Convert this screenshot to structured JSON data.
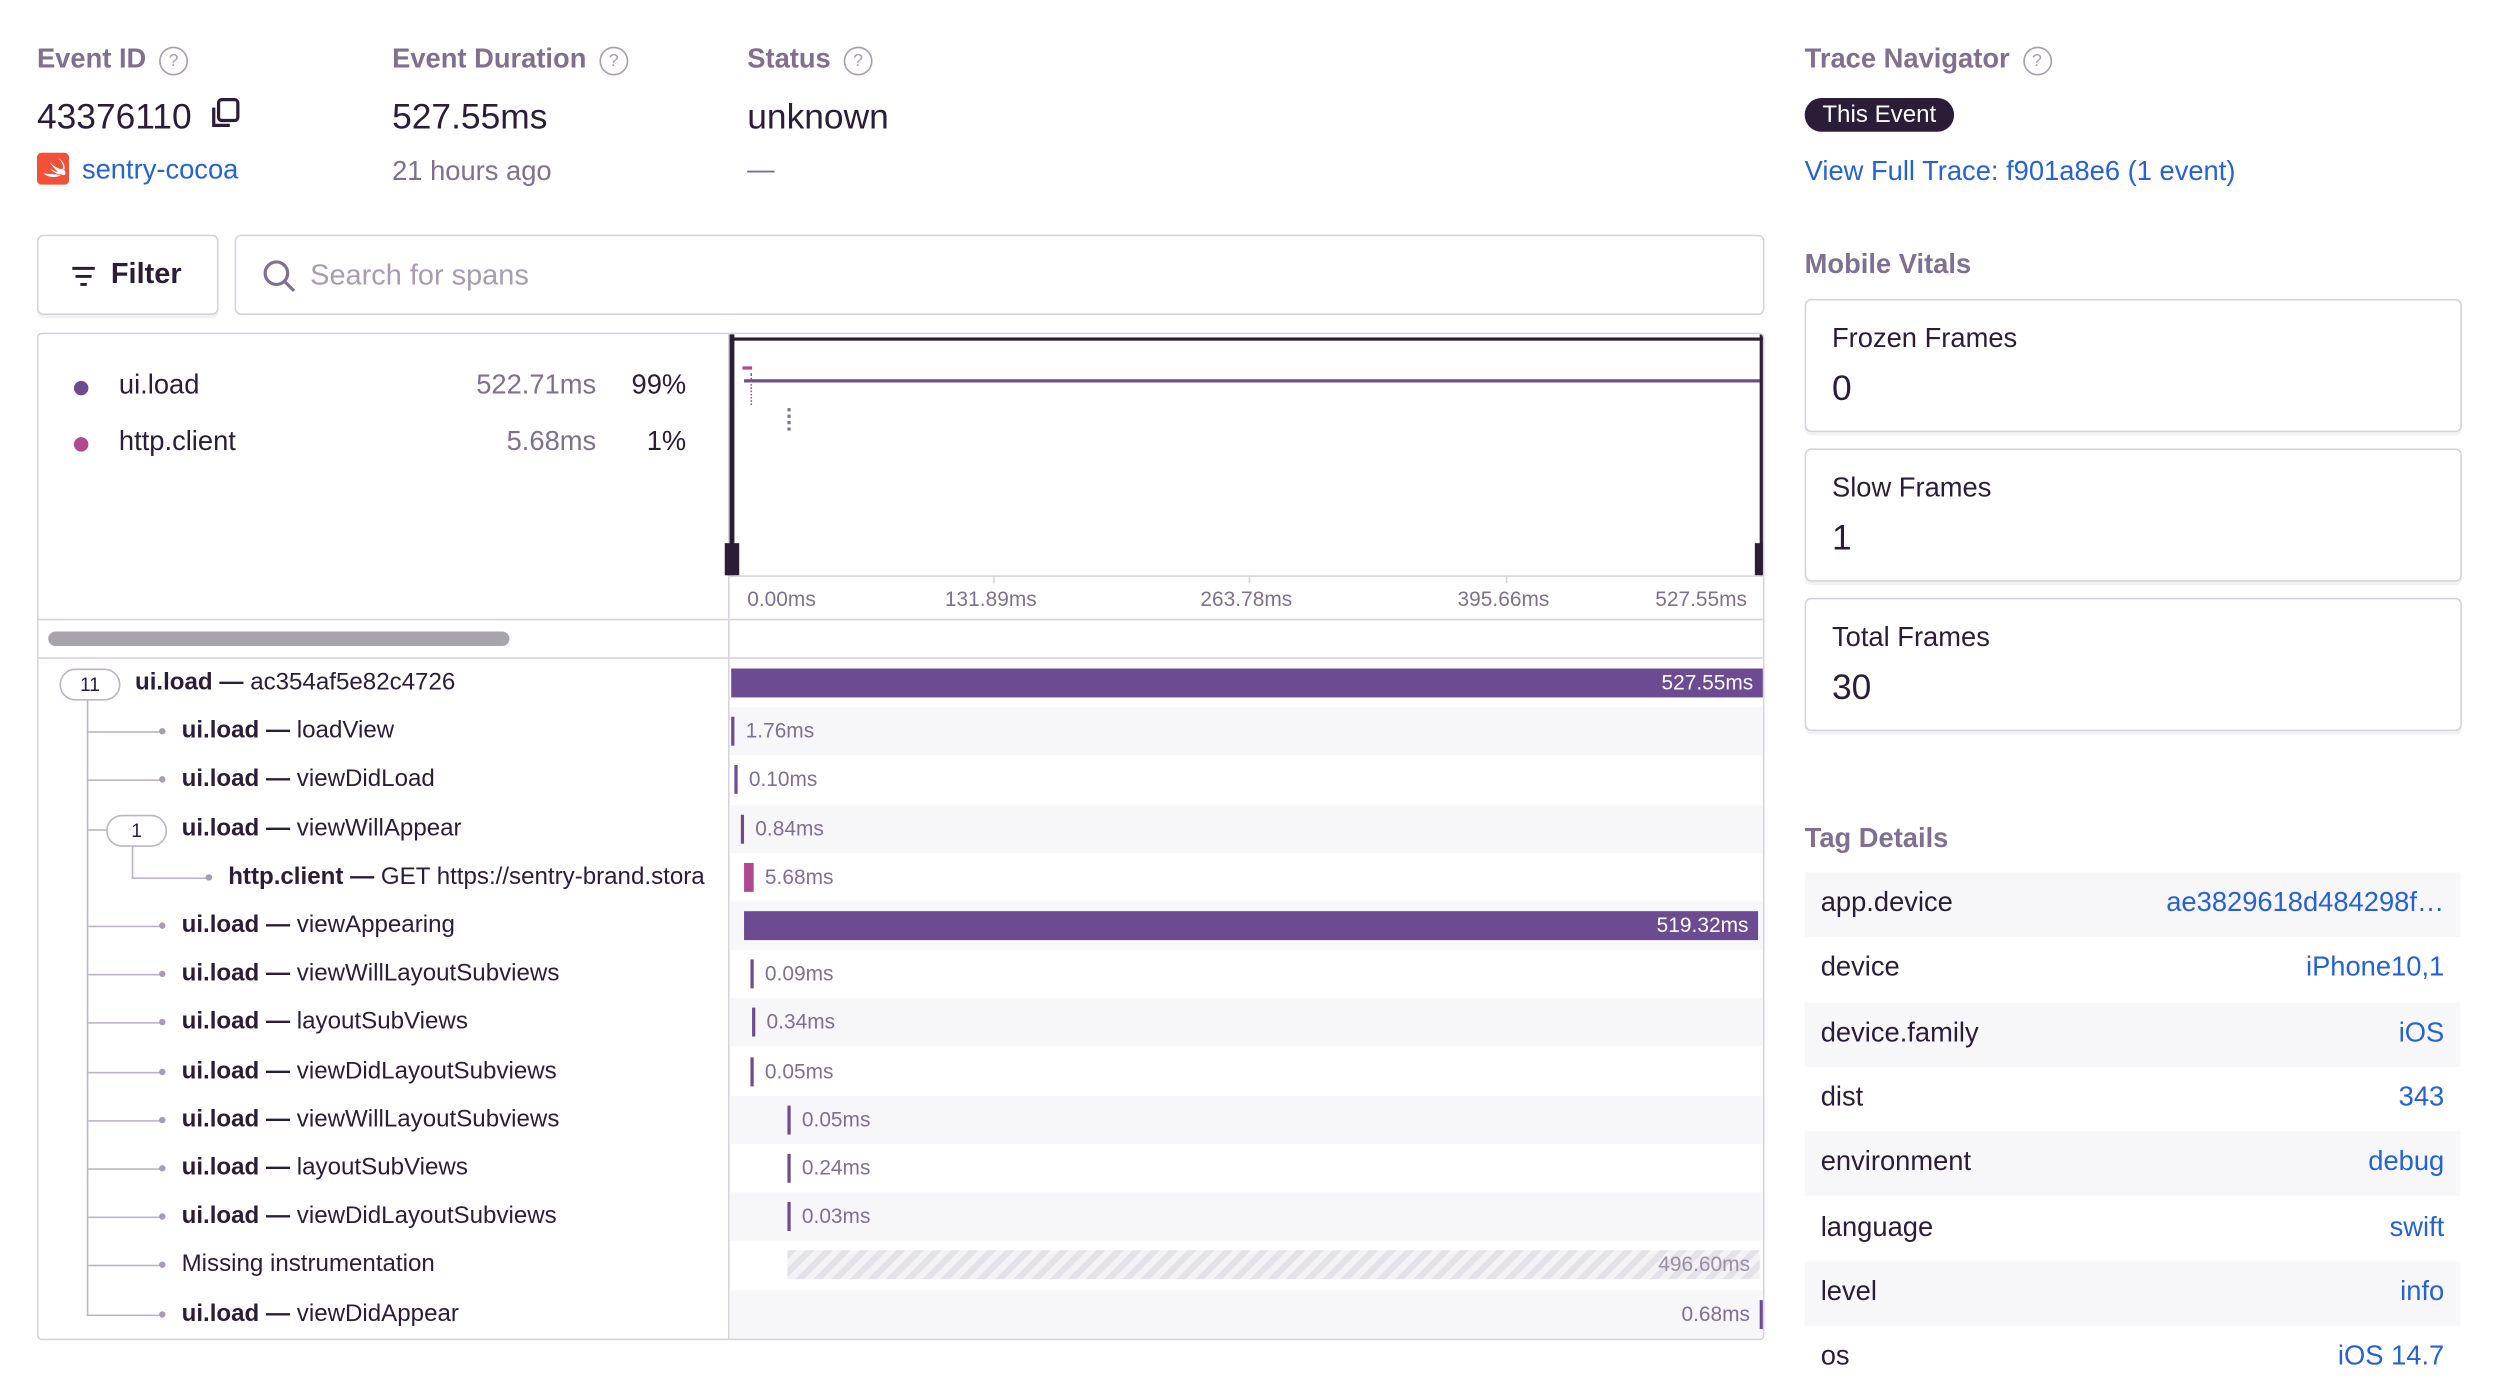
{
  "header": {
    "event_id": {
      "label": "Event ID",
      "value": "43376110",
      "project": "sentry-cocoa"
    },
    "duration": {
      "label": "Event Duration",
      "value": "527.55ms",
      "time": "21 hours ago"
    },
    "status": {
      "label": "Status",
      "value": "unknown",
      "detail": "—"
    },
    "trace": {
      "label": "Trace Navigator",
      "badge": "This Event",
      "link": "View Full Trace: f901a8e6 (1 event)"
    }
  },
  "toolbar": {
    "filter": "Filter",
    "search_placeholder": "Search for spans"
  },
  "ops": [
    {
      "op": "ui.load",
      "duration": "522.71ms",
      "percent": "99%"
    },
    {
      "op": "http.client",
      "duration": "5.68ms",
      "percent": "1%"
    }
  ],
  "minimap_ticks": [
    "0.00ms",
    "131.89ms",
    "263.78ms",
    "395.66ms",
    "527.55ms"
  ],
  "spans": {
    "separator": "—",
    "rows": [
      {
        "op": "ui.load",
        "description": "ac354af5e82c4726",
        "duration": "527.55ms",
        "children": "11"
      },
      {
        "op": "ui.load",
        "description": "loadView",
        "duration": "1.76ms"
      },
      {
        "op": "ui.load",
        "description": "viewDidLoad",
        "duration": "0.10ms"
      },
      {
        "op": "ui.load",
        "description": "viewWillAppear",
        "duration": "0.84ms",
        "children": "1"
      },
      {
        "op": "http.client",
        "description": "GET https://sentry-brand.stora",
        "duration": "5.68ms"
      },
      {
        "op": "ui.load",
        "description": "viewAppearing",
        "duration": "519.32ms"
      },
      {
        "op": "ui.load",
        "description": "viewWillLayoutSubviews",
        "duration": "0.09ms"
      },
      {
        "op": "ui.load",
        "description": "layoutSubViews",
        "duration": "0.34ms"
      },
      {
        "op": "ui.load",
        "description": "viewDidLayoutSubviews",
        "duration": "0.05ms"
      },
      {
        "op": "ui.load",
        "description": "viewWillLayoutSubviews",
        "duration": "0.05ms"
      },
      {
        "op": "ui.load",
        "description": "layoutSubViews",
        "duration": "0.24ms"
      },
      {
        "op": "ui.load",
        "description": "viewDidLayoutSubviews",
        "duration": "0.03ms"
      },
      {
        "description": "Missing instrumentation",
        "duration": "496.60ms"
      },
      {
        "op": "ui.load",
        "description": "viewDidAppear",
        "duration": "0.68ms"
      }
    ]
  },
  "mobile_vitals": {
    "title": "Mobile Vitals",
    "cards": [
      {
        "label": "Frozen Frames",
        "value": 0
      },
      {
        "label": "Slow Frames",
        "value": 1
      },
      {
        "label": "Total Frames",
        "value": 30
      }
    ]
  },
  "tags": {
    "title": "Tag Details",
    "rows": [
      {
        "key": "app.device",
        "value": "ae3829618d484298f…"
      },
      {
        "key": "device",
        "value": "iPhone10,1"
      },
      {
        "key": "device.family",
        "value": "iOS"
      },
      {
        "key": "dist",
        "value": "343"
      },
      {
        "key": "environment",
        "value": "debug"
      },
      {
        "key": "language",
        "value": "swift"
      },
      {
        "key": "level",
        "value": "info"
      },
      {
        "key": "os",
        "value": "iOS 14.7"
      }
    ]
  }
}
